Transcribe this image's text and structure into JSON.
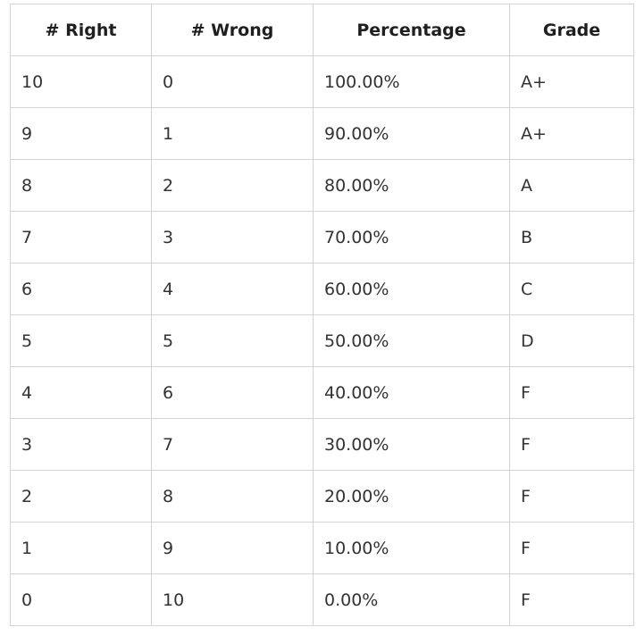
{
  "table": {
    "headers": [
      "# Right",
      "# Wrong",
      "Percentage",
      "Grade"
    ],
    "rows": [
      [
        "10",
        "0",
        "100.00%",
        "A+"
      ],
      [
        "9",
        "1",
        "90.00%",
        "A+"
      ],
      [
        "8",
        "2",
        "80.00%",
        "A"
      ],
      [
        "7",
        "3",
        "70.00%",
        "B"
      ],
      [
        "6",
        "4",
        "60.00%",
        "C"
      ],
      [
        "5",
        "5",
        "50.00%",
        "D"
      ],
      [
        "4",
        "6",
        "40.00%",
        "F"
      ],
      [
        "3",
        "7",
        "30.00%",
        "F"
      ],
      [
        "2",
        "8",
        "20.00%",
        "F"
      ],
      [
        "1",
        "9",
        "10.00%",
        "F"
      ],
      [
        "0",
        "10",
        "0.00%",
        "F"
      ]
    ]
  }
}
